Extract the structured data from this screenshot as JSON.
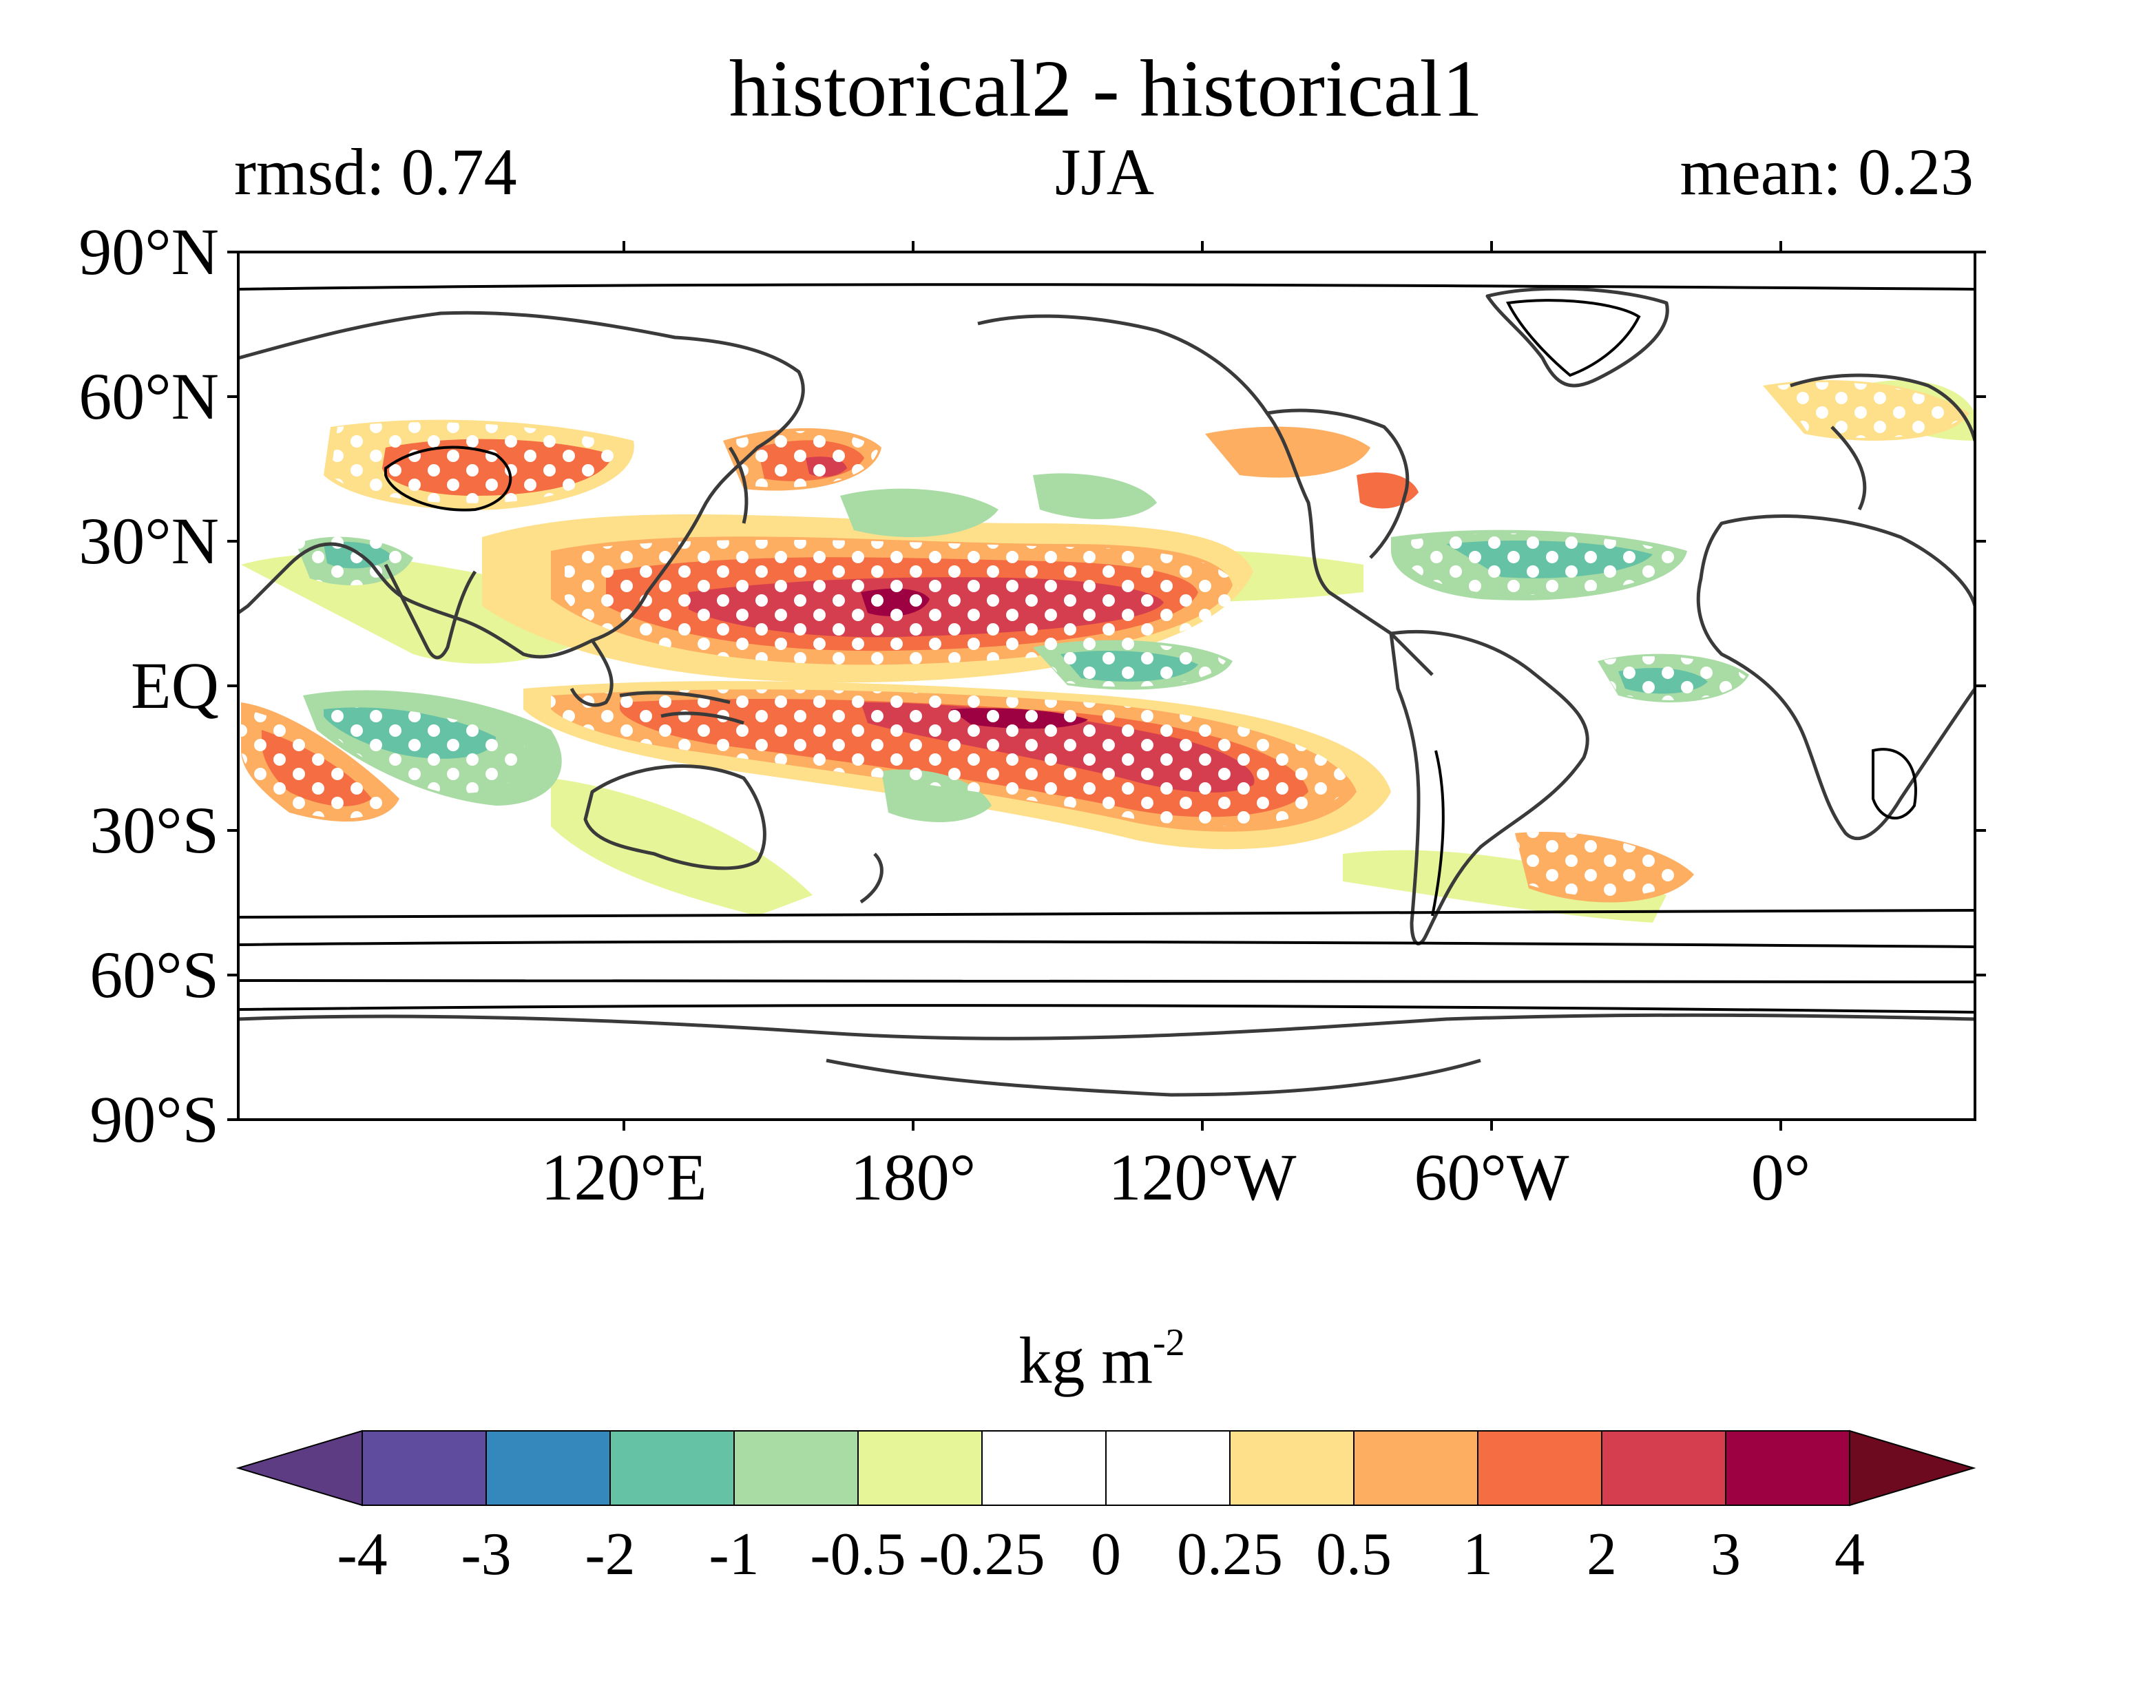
{
  "title": "historical2 - historical1",
  "left_string": "rmsd: 0.74",
  "center_string": "JJA",
  "right_string": "mean: 0.23",
  "lat_labels": [
    "90°N",
    "60°N",
    "30°N",
    "EQ",
    "30°S",
    "60°S",
    "90°S"
  ],
  "lon_labels": [
    "120°E",
    "180°",
    "120°W",
    "60°W",
    "0°"
  ],
  "colorbar": {
    "units_base": "kg m",
    "units_exp": "-2",
    "levels": [
      "-4",
      "-3",
      "-2",
      "-1",
      "-0.5",
      "-0.25",
      "0",
      "0.25",
      "0.5",
      "1",
      "2",
      "3",
      "4"
    ],
    "colors": [
      "#5e3c83",
      "#604c9e",
      "#3488bc",
      "#66c2a5",
      "#a9dca4",
      "#e6f598",
      "#ffffff",
      "#ffffff",
      "#fee08b",
      "#fdae61",
      "#f46d43",
      "#d53e4f",
      "#9e0142",
      "#6d0a1f"
    ]
  },
  "map": {
    "central_longitude": "approx. 160°W (Pacific-centred)",
    "stippling": "white dots mark significant differences",
    "contours": "black orography / ocean-boundary lines"
  }
}
